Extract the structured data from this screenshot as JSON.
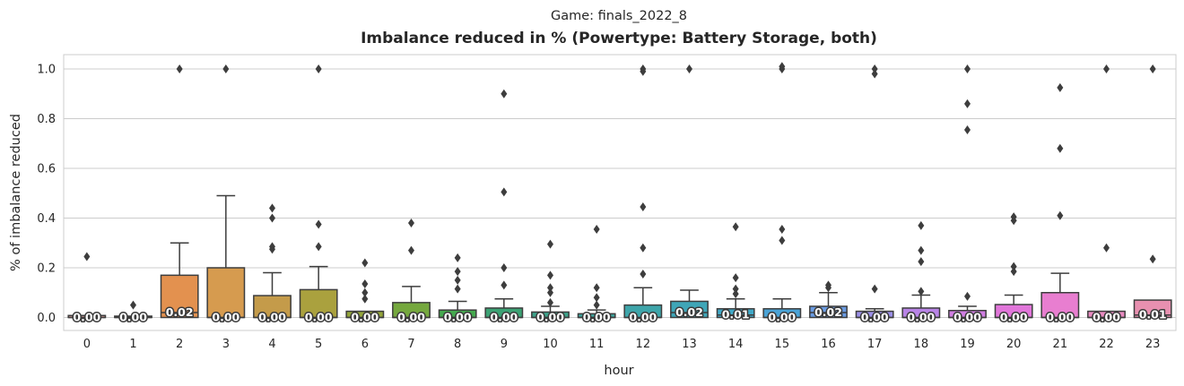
{
  "chart_data": {
    "type": "box",
    "suptitle": "Game: finals_2022_8",
    "title": "Imbalance reduced in % (Powertype: Battery Storage, both)",
    "xlabel": "hour",
    "ylabel": "% of imbalance reduced",
    "ylim": [
      -0.05,
      1.06
    ],
    "yticks": [
      "0.0",
      "0.2",
      "0.4",
      "0.6",
      "0.8",
      "1.0"
    ],
    "grid": "horizontal",
    "categories": [
      "0",
      "1",
      "2",
      "3",
      "4",
      "5",
      "6",
      "7",
      "8",
      "9",
      "10",
      "11",
      "12",
      "13",
      "14",
      "15",
      "16",
      "17",
      "18",
      "19",
      "20",
      "21",
      "22",
      "23"
    ],
    "boxes": [
      {
        "hour": "0",
        "color": "#e8a8a6",
        "q1": 0.0,
        "median": 0.0,
        "q3": 0.008,
        "whisker_low": 0.0,
        "whisker_high": 0.008,
        "outliers": [
          0.245
        ],
        "label": "0.00"
      },
      {
        "hour": "1",
        "color": "#e3a096",
        "q1": 0.0,
        "median": 0.0,
        "q3": 0.002,
        "whisker_low": 0.0,
        "whisker_high": 0.002,
        "outliers": [
          0.05
        ],
        "label": "0.00"
      },
      {
        "hour": "2",
        "color": "#e3914f",
        "q1": 0.0,
        "median": 0.02,
        "q3": 0.17,
        "whisker_low": 0.0,
        "whisker_high": 0.3,
        "outliers": [
          1.0
        ],
        "label": "0.02"
      },
      {
        "hour": "3",
        "color": "#d69b4f",
        "q1": 0.0,
        "median": 0.0,
        "q3": 0.2,
        "whisker_low": 0.0,
        "whisker_high": 0.49,
        "outliers": [
          1.0
        ],
        "label": "0.00"
      },
      {
        "hour": "4",
        "color": "#c49b4a",
        "q1": 0.0,
        "median": 0.0,
        "q3": 0.088,
        "whisker_low": 0.0,
        "whisker_high": 0.18,
        "outliers": [
          0.44,
          0.4,
          0.285,
          0.275
        ],
        "label": "0.00"
      },
      {
        "hour": "5",
        "color": "#aaa13e",
        "q1": 0.0,
        "median": 0.0,
        "q3": 0.112,
        "whisker_low": 0.0,
        "whisker_high": 0.205,
        "outliers": [
          1.0,
          0.375,
          0.285
        ],
        "label": "0.00"
      },
      {
        "hour": "6",
        "color": "#93a43a",
        "q1": 0.0,
        "median": 0.0,
        "q3": 0.025,
        "whisker_low": 0.0,
        "whisker_high": 0.025,
        "outliers": [
          0.22,
          0.135,
          0.1,
          0.075
        ],
        "label": "0.00"
      },
      {
        "hour": "7",
        "color": "#75a83e",
        "q1": 0.0,
        "median": 0.0,
        "q3": 0.06,
        "whisker_low": 0.0,
        "whisker_high": 0.125,
        "outliers": [
          0.38,
          0.27
        ],
        "label": "0.00"
      },
      {
        "hour": "8",
        "color": "#45a94f",
        "q1": 0.0,
        "median": 0.0,
        "q3": 0.03,
        "whisker_low": 0.0,
        "whisker_high": 0.065,
        "outliers": [
          0.24,
          0.185,
          0.15,
          0.115
        ],
        "label": "0.00"
      },
      {
        "hour": "9",
        "color": "#3ca274",
        "q1": 0.0,
        "median": 0.0,
        "q3": 0.038,
        "whisker_low": 0.0,
        "whisker_high": 0.075,
        "outliers": [
          0.9,
          0.505,
          0.2,
          0.13
        ],
        "label": "0.00"
      },
      {
        "hour": "10",
        "color": "#3da28a",
        "q1": 0.0,
        "median": 0.0,
        "q3": 0.022,
        "whisker_low": 0.0,
        "whisker_high": 0.045,
        "outliers": [
          0.295,
          0.17,
          0.12,
          0.1,
          0.06
        ],
        "label": "0.00"
      },
      {
        "hour": "11",
        "color": "#3ea49c",
        "q1": 0.0,
        "median": 0.0,
        "q3": 0.015,
        "whisker_low": 0.0,
        "whisker_high": 0.03,
        "outliers": [
          0.355,
          0.12,
          0.08,
          0.05
        ],
        "label": "0.00"
      },
      {
        "hour": "12",
        "color": "#3ea5aa",
        "q1": 0.0,
        "median": 0.0,
        "q3": 0.05,
        "whisker_low": 0.0,
        "whisker_high": 0.12,
        "outliers": [
          1.0,
          0.99,
          0.445,
          0.28,
          0.175
        ],
        "label": "0.00"
      },
      {
        "hour": "13",
        "color": "#3fa6b8",
        "q1": 0.0,
        "median": 0.02,
        "q3": 0.065,
        "whisker_low": 0.0,
        "whisker_high": 0.11,
        "outliers": [
          1.0
        ],
        "label": "0.02"
      },
      {
        "hour": "14",
        "color": "#40a9c8",
        "q1": 0.0,
        "median": 0.01,
        "q3": 0.035,
        "whisker_low": 0.0,
        "whisker_high": 0.075,
        "outliers": [
          0.365,
          0.16,
          0.115,
          0.095
        ],
        "label": "0.01"
      },
      {
        "hour": "15",
        "color": "#4aa3d6",
        "q1": 0.0,
        "median": 0.0,
        "q3": 0.035,
        "whisker_low": 0.0,
        "whisker_high": 0.075,
        "outliers": [
          1.0,
          1.01,
          0.355,
          0.31
        ],
        "label": "0.00"
      },
      {
        "hour": "16",
        "color": "#6a9be2",
        "q1": 0.0,
        "median": 0.02,
        "q3": 0.045,
        "whisker_low": 0.0,
        "whisker_high": 0.1,
        "outliers": [
          0.13,
          0.12
        ],
        "label": "0.02"
      },
      {
        "hour": "17",
        "color": "#9b8fe6",
        "q1": 0.0,
        "median": 0.0,
        "q3": 0.025,
        "whisker_low": 0.0,
        "whisker_high": 0.035,
        "outliers": [
          1.0,
          0.98,
          0.115
        ],
        "label": "0.00"
      },
      {
        "hour": "18",
        "color": "#b884e6",
        "q1": 0.0,
        "median": 0.0,
        "q3": 0.038,
        "whisker_low": 0.0,
        "whisker_high": 0.09,
        "outliers": [
          0.37,
          0.27,
          0.225,
          0.105
        ],
        "label": "0.00"
      },
      {
        "hour": "19",
        "color": "#d07ee2",
        "q1": 0.0,
        "median": 0.0,
        "q3": 0.028,
        "whisker_low": 0.0,
        "whisker_high": 0.045,
        "outliers": [
          1.0,
          0.86,
          0.755,
          0.085
        ],
        "label": "0.00"
      },
      {
        "hour": "20",
        "color": "#e176da",
        "q1": 0.0,
        "median": 0.0,
        "q3": 0.052,
        "whisker_low": 0.0,
        "whisker_high": 0.09,
        "outliers": [
          0.405,
          0.39,
          0.205,
          0.185
        ],
        "label": "0.00"
      },
      {
        "hour": "21",
        "color": "#e87ed0",
        "q1": 0.0,
        "median": 0.0,
        "q3": 0.1,
        "whisker_low": 0.0,
        "whisker_high": 0.178,
        "outliers": [
          0.925,
          0.68,
          0.41
        ],
        "label": "0.00"
      },
      {
        "hour": "22",
        "color": "#e88ac0",
        "q1": 0.0,
        "median": 0.0,
        "q3": 0.025,
        "whisker_low": 0.0,
        "whisker_high": 0.025,
        "outliers": [
          1.0,
          0.28
        ],
        "label": "0.00"
      },
      {
        "hour": "23",
        "color": "#e890b0",
        "q1": 0.0,
        "median": 0.01,
        "q3": 0.07,
        "whisker_low": 0.0,
        "whisker_high": 0.07,
        "outliers": [
          1.0,
          0.235
        ],
        "label": "0.01"
      }
    ]
  }
}
